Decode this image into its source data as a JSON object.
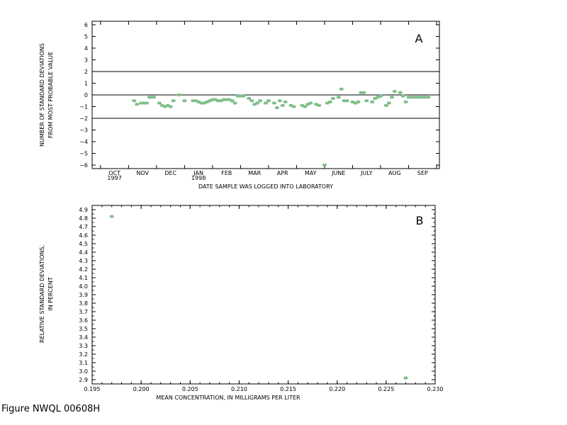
{
  "caption": "Figure NWQL 00608H",
  "colors": {
    "points": "#7fbf8a",
    "axis": "#000000"
  },
  "chart_data": [
    {
      "type": "scatter",
      "panel_label": "A",
      "title": "",
      "xlabel": "DATE SAMPLE WAS LOGGED INTO LABORATORY",
      "ylabel_lines": [
        "NUMBER OF STANDARD DEVIATIONS",
        "FROM MOST PROBABLE VALUE"
      ],
      "ylim": [
        -6.3,
        6.3
      ],
      "yticks": [
        -6,
        -5,
        -4,
        -3,
        -2,
        -1,
        0,
        1,
        2,
        3,
        4,
        5,
        6
      ],
      "ytick_labels": [
        "−6",
        "−5",
        "−4",
        "−3",
        "−2",
        "−1",
        "0",
        "1",
        "2",
        "3",
        "4",
        "5",
        "6"
      ],
      "xlim": [
        0,
        12.4
      ],
      "month_labels": [
        "OCT",
        "NOV",
        "DEC",
        "JAN",
        "FEB",
        "MAR",
        "APR",
        "MAY",
        "JUNE",
        "JULY",
        "AUG",
        "SEP"
      ],
      "month_positions": [
        0.8,
        1.8,
        2.8,
        3.8,
        4.8,
        5.8,
        6.8,
        7.8,
        8.8,
        9.8,
        10.8,
        11.8
      ],
      "year_labels": [
        {
          "text": "1997",
          "x": 0.8
        },
        {
          "text": "1998",
          "x": 3.8
        }
      ],
      "reference_lines": [
        2,
        0,
        -2
      ],
      "x": [
        1.5,
        1.6,
        1.75,
        1.85,
        1.95,
        2.05,
        2.1,
        2.2,
        2.4,
        2.5,
        2.6,
        2.7,
        2.8,
        2.9,
        3.1,
        3.3,
        3.6,
        3.7,
        3.8,
        3.9,
        4.0,
        4.1,
        4.2,
        4.3,
        4.4,
        4.5,
        4.6,
        4.7,
        4.8,
        4.9,
        5.0,
        5.1,
        5.2,
        5.3,
        5.4,
        5.6,
        5.7,
        5.8,
        5.9,
        6.0,
        6.2,
        6.3,
        6.5,
        6.6,
        6.7,
        6.8,
        6.9,
        7.1,
        7.2,
        7.5,
        7.6,
        7.7,
        7.8,
        8.0,
        8.1,
        8.3,
        8.4,
        8.5,
        8.6,
        8.8,
        8.9,
        9.0,
        9.1,
        9.3,
        9.4,
        9.5,
        9.6,
        9.7,
        9.8,
        10.0,
        10.1,
        10.2,
        10.3,
        10.5,
        10.6,
        10.7,
        10.8,
        11.0,
        11.1,
        11.2,
        11.3,
        11.4,
        11.5,
        11.6,
        11.7,
        11.8,
        11.9,
        12.0
      ],
      "y": [
        -0.5,
        -0.8,
        -0.7,
        -0.7,
        -0.7,
        -0.2,
        -0.2,
        -0.2,
        -0.7,
        -0.9,
        -1.0,
        -0.9,
        -1.0,
        -0.5,
        0.0,
        -0.5,
        -0.5,
        -0.5,
        -0.6,
        -0.7,
        -0.7,
        -0.6,
        -0.5,
        -0.4,
        -0.4,
        -0.5,
        -0.5,
        -0.4,
        -0.4,
        -0.4,
        -0.5,
        -0.7,
        -0.1,
        -0.1,
        -0.1,
        -0.3,
        -0.5,
        -0.8,
        -0.7,
        -0.5,
        -0.7,
        -0.5,
        -0.7,
        -1.1,
        -0.5,
        -0.9,
        -0.6,
        -0.9,
        -1.0,
        -0.9,
        -1.0,
        -0.8,
        -0.7,
        -0.8,
        -0.9,
        -6.0,
        -0.7,
        -0.6,
        -0.3,
        -0.2,
        0.5,
        -0.5,
        -0.5,
        -0.6,
        -0.7,
        -0.6,
        0.2,
        0.2,
        -0.5,
        -0.6,
        -0.3,
        -0.2,
        -0.1,
        -0.9,
        -0.7,
        -0.2,
        0.3,
        0.2,
        -0.1,
        -0.6,
        -0.2,
        -0.2,
        -0.2,
        -0.2,
        -0.2,
        -0.2,
        -0.2,
        -0.2
      ]
    },
    {
      "type": "scatter",
      "panel_label": "B",
      "title": "",
      "xlabel": "MEAN CONCENTRATION, IN MILLIGRAMS PER LITER",
      "ylabel_lines": [
        "RELATIVE STANDARD DEVIATIONS,",
        "IN PERCENT"
      ],
      "xlim": [
        0.195,
        0.23
      ],
      "ylim": [
        2.85,
        4.95
      ],
      "xticks": [
        0.195,
        0.2,
        0.205,
        0.21,
        0.215,
        0.22,
        0.225,
        0.23
      ],
      "xtick_labels": [
        "0.195",
        "0.200",
        "0.205",
        "0.210",
        "0.215",
        "0.220",
        "0.225",
        "0.230"
      ],
      "yticks": [
        2.9,
        3.0,
        3.1,
        3.2,
        3.3,
        3.4,
        3.5,
        3.6,
        3.7,
        3.8,
        3.9,
        4.0,
        4.1,
        4.2,
        4.3,
        4.4,
        4.5,
        4.6,
        4.7,
        4.8,
        4.9
      ],
      "ytick_labels": [
        "2.9",
        "3.0",
        "3.1",
        "3.2",
        "3.3",
        "3.4",
        "3.5",
        "3.6",
        "3.7",
        "3.8",
        "3.9",
        "4.0",
        "4.1",
        "4.2",
        "4.3",
        "4.4",
        "4.5",
        "4.6",
        "4.7",
        "4.8",
        "4.9"
      ],
      "x": [
        0.197,
        0.227
      ],
      "y": [
        4.82,
        2.92
      ]
    }
  ]
}
